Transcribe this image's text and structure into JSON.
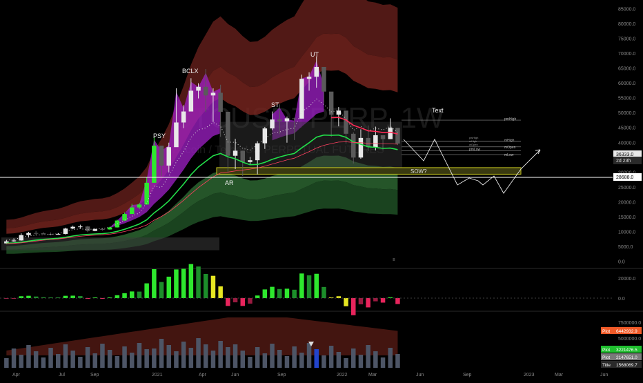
{
  "watermark": {
    "symbol": "BTCUSDTPERP, 1W",
    "description": "Bitcoin / TetherUS PERPETUAL FUTURES"
  },
  "annotations": {
    "psy": "PSY",
    "bclx": "BCLX",
    "ar": "AR",
    "st": "ST",
    "ut": "UT",
    "sow": "SOW?",
    "text": "Text",
    "small_marker": "≡"
  },
  "levels": {
    "pmhigh": "pmHigh",
    "mhigh": "mHigh",
    "mopen": "mOpen",
    "pmlow": "pmLow",
    "mlow": "mLow",
    "small_a": "pwHigh",
    "small_b": "wHigh",
    "small_c": "wOpen"
  },
  "price_axis": {
    "ticks": [
      "85000.0",
      "80000.0",
      "75000.0",
      "70000.0",
      "65000.0",
      "60000.0",
      "55000.0",
      "50000.0",
      "45000.0",
      "40000.0",
      "35000.0",
      "30000.0",
      "25000.0",
      "20000.0",
      "15000.0",
      "10000.0",
      "5000.0",
      "0.0"
    ],
    "current_price": "36333.0",
    "countdown": "2d 23h",
    "hline_price": "28688.0"
  },
  "osc_axis": {
    "ticks": [
      "20000.0",
      "0.0"
    ]
  },
  "vol_axis": {
    "ticks": [
      "7500000.0",
      "5000000.0"
    ],
    "badges": [
      {
        "label": "Plot",
        "value": "6442932.9",
        "color": "#f05a28"
      },
      {
        "label": "Plot",
        "value": "3221476.5",
        "color": "#1fbf2e"
      },
      {
        "label": "Plot",
        "value": "2147651.0",
        "color": "#7a7a7a"
      },
      {
        "label": "Title",
        "value": "1568069.7",
        "color": "#2a2a2a"
      }
    ]
  },
  "time_axis": {
    "labels": [
      "Apr",
      "Jul",
      "Sep",
      "2021",
      "Apr",
      "Jun",
      "Sep",
      "2022",
      "Mar",
      "Jun",
      "Sep",
      "2023",
      "Mar",
      "Jun"
    ]
  },
  "colors": {
    "bull": "#e8e8e8",
    "bear": "#5a5a5a",
    "green_candle": "#2ee82e",
    "red_line": "#ff2a55",
    "green_line": "#22e04a",
    "purple": "#a020c8",
    "red_band": "#5a1c18",
    "green_band": "#1d4a22",
    "sow_box": "#c8c820"
  },
  "chart_data": {
    "type": "candlestick",
    "title": "BTCUSDTPERP, 1W",
    "ylim": [
      0,
      85000
    ],
    "x": [
      "2020-03-30",
      "2020-04-13",
      "2020-04-27",
      "2020-05-11",
      "2020-05-25",
      "2020-06-08",
      "2020-06-22",
      "2020-07-06",
      "2020-07-20",
      "2020-08-03",
      "2020-08-17",
      "2020-08-31",
      "2020-09-14",
      "2020-09-28",
      "2020-10-12",
      "2020-10-26",
      "2020-11-09",
      "2020-11-23",
      "2020-12-07",
      "2020-12-21",
      "2021-01-04",
      "2021-01-18",
      "2021-02-01",
      "2021-02-15",
      "2021-03-01",
      "2021-03-15",
      "2021-03-29",
      "2021-04-12",
      "2021-04-26",
      "2021-05-10",
      "2021-05-24",
      "2021-06-07",
      "2021-06-21",
      "2021-07-05",
      "2021-07-19",
      "2021-08-02",
      "2021-08-16",
      "2021-08-30",
      "2021-09-13",
      "2021-09-27",
      "2021-10-11",
      "2021-10-25",
      "2021-11-08",
      "2021-11-22",
      "2021-12-06",
      "2021-12-20",
      "2022-01-03",
      "2022-01-17",
      "2022-01-31",
      "2022-02-14",
      "2022-02-28",
      "2022-03-14",
      "2022-03-28",
      "2022-04-11"
    ],
    "close": [
      6800,
      7100,
      8900,
      9600,
      9500,
      9300,
      9200,
      9300,
      11100,
      11700,
      11800,
      10300,
      10900,
      10800,
      11500,
      13800,
      16000,
      18200,
      19200,
      26500,
      39000,
      32300,
      38500,
      46800,
      50500,
      57500,
      58800,
      55900,
      56800,
      50400,
      35600,
      37300,
      33500,
      34100,
      39800,
      44800,
      47800,
      47200,
      48200,
      48100,
      61500,
      62200,
      65500,
      57200,
      49400,
      50800,
      43000,
      35000,
      41600,
      38500,
      42500,
      41200,
      45000,
      39700
    ],
    "high": [
      7200,
      7800,
      9500,
      10000,
      10300,
      9900,
      9800,
      9600,
      11400,
      12100,
      12400,
      12000,
      11200,
      11300,
      11700,
      14100,
      16500,
      19400,
      19700,
      28300,
      41900,
      38000,
      40000,
      58300,
      52600,
      61700,
      60000,
      64800,
      58300,
      59500,
      42400,
      41300,
      36000,
      35200,
      40500,
      45300,
      50500,
      52900,
      48800,
      48400,
      62900,
      63700,
      69000,
      60300,
      53800,
      52000,
      48000,
      43500,
      44500,
      45800,
      45400,
      42300,
      48200,
      43000
    ],
    "low": [
      5900,
      6600,
      7000,
      8100,
      8800,
      9000,
      8800,
      9000,
      9100,
      10900,
      11100,
      9900,
      10200,
      10400,
      10700,
      11400,
      13600,
      16300,
      17600,
      19100,
      27700,
      28800,
      30000,
      43000,
      44900,
      53000,
      54900,
      50300,
      47000,
      42000,
      30000,
      31100,
      28800,
      32600,
      29300,
      37900,
      44200,
      42900,
      40000,
      40900,
      51400,
      57500,
      58500,
      53500,
      42000,
      45500,
      39700,
      33000,
      34600,
      37200,
      37400,
      37500,
      41200,
      39200
    ],
    "series": [
      {
        "name": "",
        "values": [
          7200,
          7300,
          7600,
          8000,
          8400,
          8700,
          8900,
          9100,
          9500,
          10000,
          10400,
          10600,
          10800,
          10900,
          11200,
          11800,
          12600,
          13600,
          14700,
          16300,
          19000,
          21200,
          23700,
          27000,
          30300,
          34000,
          37000,
          39200,
          41400,
          42300,
          41000,
          40200,
          38900,
          37900,
          38000,
          38800,
          40000,
          40900,
          41700,
          42300,
          44500,
          46500,
          48700,
          49500,
          49400,
          49500,
          48600,
          46800,
          45900,
          44900,
          44700,
          44300,
          44400,
          43800
        ]
      },
      {
        "name": "",
        "values": [
          6000,
          6100,
          6300,
          6600,
          6900,
          7200,
          7400,
          7600,
          7900,
          8200,
          8500,
          8700,
          8900,
          9000,
          9200,
          9600,
          10100,
          10700,
          11400,
          12300,
          13900,
          15200,
          16700,
          18600,
          20600,
          22800,
          24900,
          26700,
          28500,
          29800,
          30100,
          30500,
          30800,
          31100,
          31500,
          32100,
          32800,
          33500,
          34200,
          34800,
          35900,
          37000,
          38200,
          39100,
          39700,
          40200,
          40300,
          40100,
          40000,
          39800,
          39700,
          39600,
          39600,
          39500
        ]
      }
    ]
  }
}
